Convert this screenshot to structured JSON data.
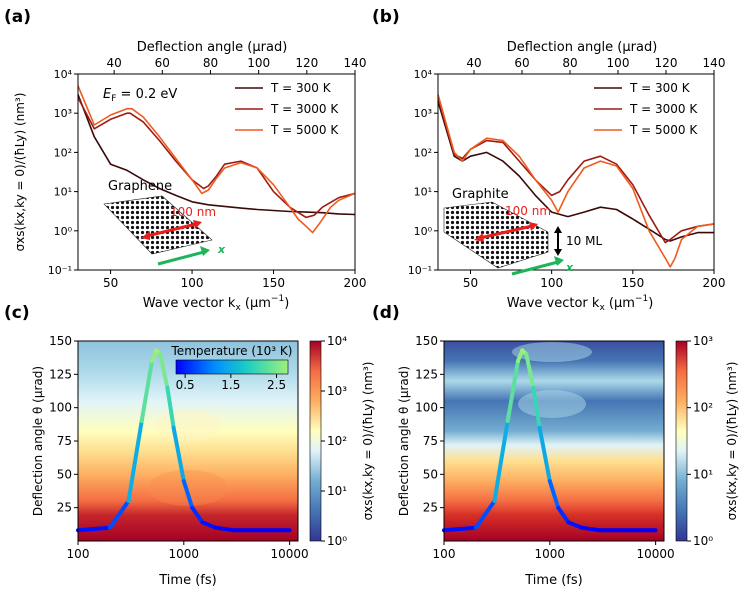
{
  "chart_data": [
    {
      "panel": "(a)",
      "type": "line",
      "xlabel": "Wave vector k",
      "xlabel_sub": "x",
      "xlabel_unit": " (μm",
      "top_axis_label": "Deflection angle (μrad)",
      "ylabel": "σxs(kx,ky = 0)/(ħLy) (nm³)",
      "xlim": [
        30,
        200
      ],
      "ylim": [
        0.1,
        10000
      ],
      "yscale": "log",
      "x_ticks": [
        "50",
        "100",
        "150",
        "200"
      ],
      "top_ticks": [
        "40",
        "60",
        "80",
        "100",
        "120",
        "140"
      ],
      "y_ticks": [
        "10⁻¹",
        "10⁰",
        "10¹",
        "10²",
        "10³",
        "10⁴"
      ],
      "annotation": "E = 0.2 eV",
      "annotation_sub": "F",
      "inset_label": "Graphene",
      "inset_width": "100 nm",
      "inset_axis": "x",
      "series": [
        {
          "name": "T = 300 K",
          "color": "#3a0a0a",
          "x": [
            30,
            40,
            50,
            60,
            70,
            80,
            90,
            100,
            110,
            120,
            130,
            140,
            150,
            160,
            170,
            180,
            190,
            200
          ],
          "y": [
            3000,
            250,
            50,
            35,
            20,
            12,
            8,
            5.5,
            4.6,
            4.2,
            3.8,
            3.5,
            3.3,
            3.1,
            3.0,
            2.9,
            2.7,
            2.6
          ]
        },
        {
          "name": "T = 3000 K",
          "color": "#9e1b12",
          "x": [
            30,
            40,
            50,
            60,
            62,
            70,
            80,
            90,
            100,
            107,
            110,
            115,
            120,
            130,
            140,
            150,
            160,
            170,
            175,
            180,
            190,
            200
          ],
          "y": [
            2500,
            400,
            700,
            1000,
            1000,
            600,
            200,
            60,
            20,
            12,
            14,
            25,
            50,
            60,
            40,
            10,
            4,
            2.2,
            2.5,
            4,
            7,
            9
          ]
        },
        {
          "name": "T = 5000 K",
          "color": "#f05a1e",
          "x": [
            30,
            40,
            50,
            60,
            63,
            70,
            80,
            90,
            100,
            106,
            110,
            115,
            120,
            130,
            140,
            150,
            160,
            165,
            170,
            174,
            178,
            185,
            190,
            200
          ],
          "y": [
            5000,
            500,
            900,
            1300,
            1300,
            800,
            250,
            70,
            20,
            9,
            11,
            22,
            40,
            55,
            40,
            15,
            4,
            2,
            1.3,
            0.9,
            1.5,
            4,
            6,
            9
          ]
        }
      ]
    },
    {
      "panel": "(b)",
      "type": "line",
      "xlabel": "Wave vector k",
      "xlabel_sub": "x",
      "xlabel_unit": " (μm",
      "top_axis_label": "Deflection angle (μrad)",
      "xlim": [
        30,
        200
      ],
      "ylim": [
        0.1,
        10000
      ],
      "yscale": "log",
      "x_ticks": [
        "50",
        "100",
        "150",
        "200"
      ],
      "top_ticks": [
        "40",
        "60",
        "80",
        "100",
        "120",
        "140"
      ],
      "y_ticks": [
        "10⁻¹",
        "10⁰",
        "10¹",
        "10²",
        "10³",
        "10⁴"
      ],
      "inset_label": "Graphite",
      "inset_width": "100 nm",
      "inset_thickness": "10 ML",
      "inset_axis": "x",
      "series": [
        {
          "name": "T = 300 K",
          "color": "#3a0a0a",
          "x": [
            30,
            40,
            45,
            50,
            60,
            70,
            80,
            90,
            100,
            110,
            120,
            130,
            140,
            150,
            160,
            170,
            173,
            180,
            190,
            200
          ],
          "y": [
            2000,
            80,
            60,
            80,
            100,
            60,
            25,
            8,
            3,
            2.3,
            3,
            4,
            3.5,
            2,
            1.1,
            0.6,
            0.55,
            0.7,
            0.9,
            0.9
          ]
        },
        {
          "name": "T = 3000 K",
          "color": "#9e1b12",
          "x": [
            30,
            40,
            45,
            50,
            60,
            70,
            80,
            90,
            100,
            105,
            110,
            120,
            130,
            140,
            150,
            160,
            170,
            173,
            180,
            190,
            200
          ],
          "y": [
            2500,
            90,
            70,
            120,
            200,
            180,
            60,
            20,
            8,
            10,
            20,
            60,
            80,
            50,
            15,
            2.5,
            0.5,
            0.6,
            1,
            1.3,
            1.5
          ]
        },
        {
          "name": "T = 5000 K",
          "color": "#f05a1e",
          "x": [
            30,
            40,
            45,
            50,
            60,
            70,
            80,
            90,
            100,
            104,
            110,
            120,
            130,
            140,
            150,
            160,
            170,
            173,
            176,
            180,
            190,
            200
          ],
          "y": [
            3000,
            100,
            60,
            120,
            230,
            200,
            80,
            20,
            6,
            3,
            10,
            40,
            60,
            45,
            12,
            1,
            0.2,
            0.12,
            0.2,
            0.6,
            1.3,
            1.5
          ]
        }
      ]
    },
    {
      "panel": "(c)",
      "type": "heatmap",
      "xlabel": "Time (fs)",
      "ylabel": "Deflection angle θ (μrad)",
      "xscale": "log",
      "xlim": [
        100,
        12000
      ],
      "ylim": [
        0,
        150
      ],
      "x_ticks": [
        "100",
        "1000",
        "10000"
      ],
      "y_ticks": [
        "25",
        "50",
        "75",
        "100",
        "125",
        "150"
      ],
      "colorbar_label": "σxs(kx,ky = 0)/(ħLy) (nm³)",
      "colorbar_ticks": [
        "10⁰",
        "10¹",
        "10²",
        "10³",
        "10⁴"
      ],
      "inset_colorbar_title": "Temperature (10³ K)",
      "inset_colorbar_ticks": [
        "0.5",
        "1.5",
        "2.5"
      ],
      "temperature_curve": {
        "time_fs": [
          100,
          200,
          300,
          400,
          500,
          550,
          600,
          700,
          800,
          1000,
          1200,
          1500,
          2000,
          3000,
          5000,
          10000
        ],
        "angle_urad": [
          8,
          10,
          30,
          90,
          135,
          143,
          140,
          115,
          85,
          45,
          25,
          14,
          10,
          8,
          8,
          8
        ],
        "temperature_kK": [
          0.3,
          0.5,
          1.0,
          2.0,
          2.6,
          2.75,
          2.7,
          2.3,
          1.8,
          1.1,
          0.7,
          0.45,
          0.35,
          0.3,
          0.3,
          0.3
        ]
      }
    },
    {
      "panel": "(d)",
      "type": "heatmap",
      "xlabel": "Time (fs)",
      "ylabel": "Deflection angle θ (μrad)",
      "xscale": "log",
      "xlim": [
        100,
        12000
      ],
      "ylim": [
        0,
        150
      ],
      "x_ticks": [
        "100",
        "1000",
        "10000"
      ],
      "y_ticks": [
        "25",
        "50",
        "75",
        "100",
        "125",
        "150"
      ],
      "colorbar_label": "σxs(kx,ky = 0)/(ħLy) (nm³)",
      "colorbar_ticks": [
        "10⁰",
        "10¹",
        "10²",
        "10³"
      ],
      "temperature_curve": {
        "time_fs": [
          100,
          200,
          300,
          400,
          500,
          550,
          600,
          700,
          800,
          1000,
          1200,
          1500,
          2000,
          3000,
          5000,
          10000
        ],
        "angle_urad": [
          8,
          10,
          30,
          90,
          135,
          143,
          140,
          115,
          85,
          45,
          25,
          14,
          10,
          8,
          8,
          8
        ],
        "temperature_kK": [
          0.3,
          0.5,
          1.0,
          2.0,
          2.6,
          2.75,
          2.7,
          2.3,
          1.8,
          1.1,
          0.7,
          0.45,
          0.35,
          0.3,
          0.3,
          0.3
        ]
      }
    }
  ]
}
